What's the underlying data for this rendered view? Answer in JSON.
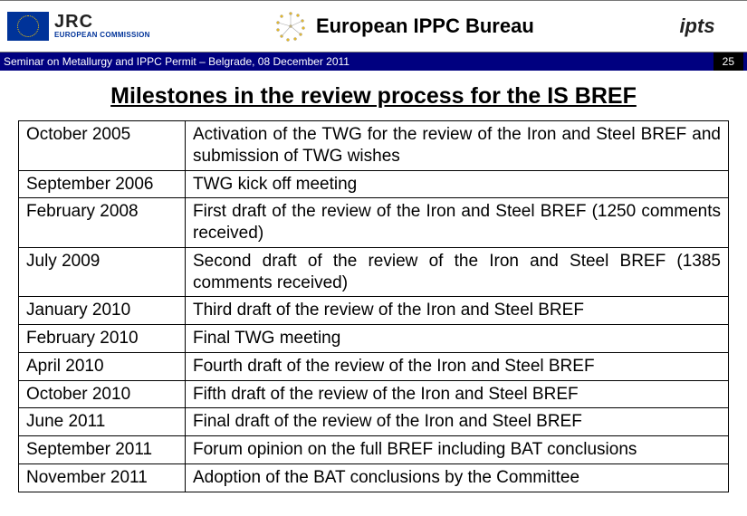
{
  "header": {
    "jrc": "JRC",
    "ec": "EUROPEAN COMMISSION",
    "title": "European IPPC Bureau",
    "right_logo": "ipts"
  },
  "seminar": {
    "text": "Seminar on Metallurgy and IPPC Permit – Belgrade, 08 December 2011",
    "page": "25"
  },
  "main_title": "Milestones in the review process for the IS BREF",
  "rows": [
    {
      "date": "October 2005",
      "desc": "Activation of the TWG for the review of the Iron and Steel BREF and submission of TWG wishes"
    },
    {
      "date": "September 2006",
      "desc": "TWG kick off meeting"
    },
    {
      "date": "February 2008",
      "desc": "First draft of the review of the Iron and Steel BREF (1250 comments received)"
    },
    {
      "date": "July 2009",
      "desc": "Second draft of the review of the Iron and Steel BREF (1385 comments received)"
    },
    {
      "date": "January 2010",
      "desc": "Third draft of the review of the Iron and Steel BREF"
    },
    {
      "date": "February 2010",
      "desc": "Final TWG meeting"
    },
    {
      "date": "April 2010",
      "desc": "Fourth draft of the review of the Iron and Steel BREF"
    },
    {
      "date": "October 2010",
      "desc": "Fifth draft of the review of the Iron and Steel BREF"
    },
    {
      "date": "June 2011",
      "desc": "Final draft of the review of the Iron and Steel BREF"
    },
    {
      "date": "September 2011",
      "desc": "Forum opinion on the full BREF including BAT conclusions"
    },
    {
      "date": "November 2011",
      "desc": "Adoption of the BAT conclusions by the Committee"
    }
  ],
  "colors": {
    "seminar_bar_bg": "#000080",
    "eu_flag_bg": "#003399",
    "eu_stars": "#ffcc00"
  }
}
